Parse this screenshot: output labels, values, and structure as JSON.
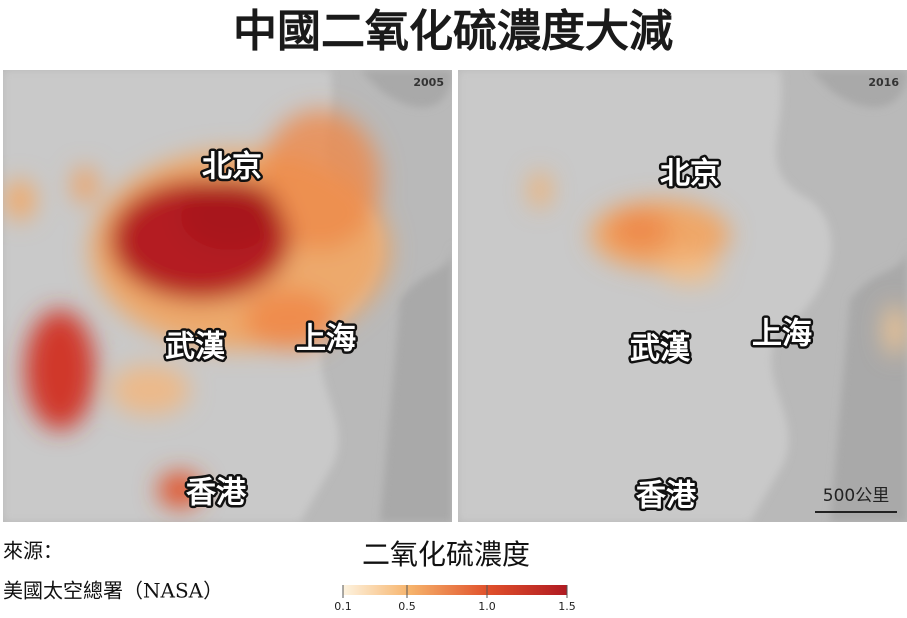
{
  "title": "中國二氧化硫濃度大減",
  "maps": [
    {
      "year": "2005",
      "labels": [
        "北京",
        "武漢",
        "上海",
        "香港"
      ]
    },
    {
      "year": "2016",
      "labels": [
        "北京",
        "武漢",
        "上海",
        "香港"
      ],
      "scale": "500公里"
    }
  ],
  "source": [
    "來源：",
    "美國太空總署（NASA）"
  ],
  "legend": {
    "title": "二氧化硫濃度",
    "lim": [
      0.1,
      1.5
    ],
    "ticks": [
      0.1,
      0.5,
      {
        "value": 1,
        "label": "1.0"
      },
      1.5
    ]
  }
}
